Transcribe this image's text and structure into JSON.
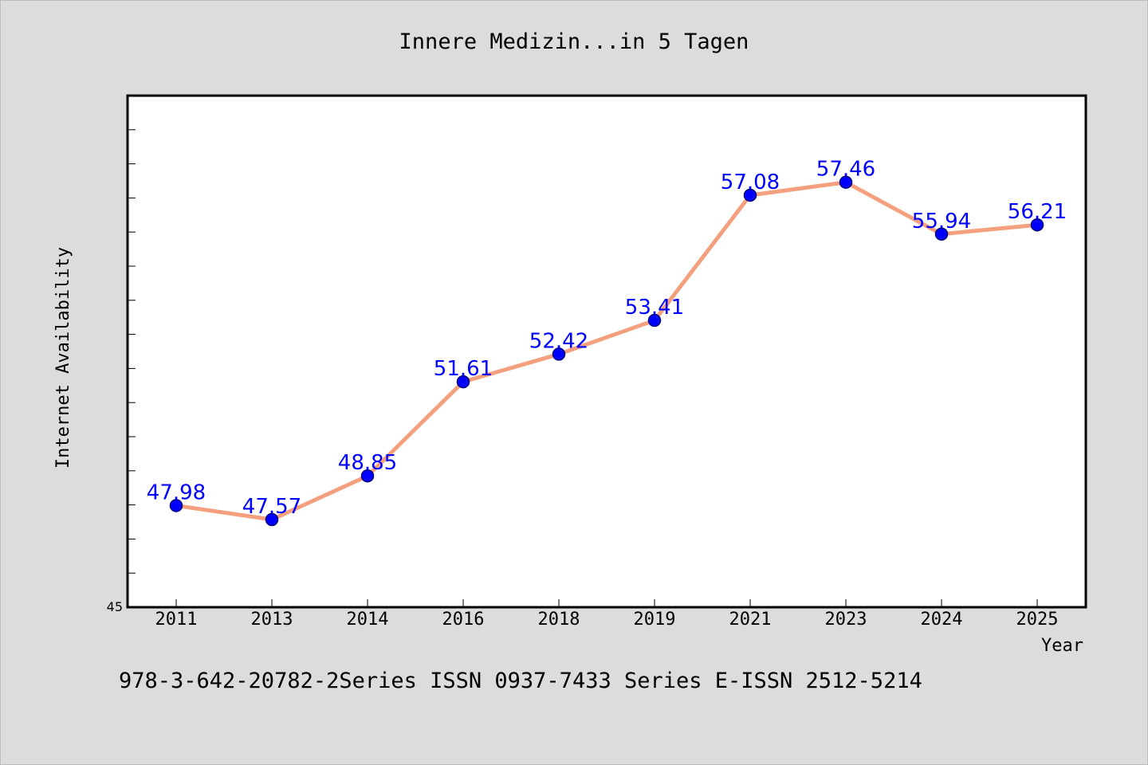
{
  "chart_data": {
    "type": "line",
    "title": "Innere Medizin...in 5 Tagen",
    "xlabel": "Year",
    "ylabel": "Internet Availability",
    "footer": "978-3-642-20782-2Series ISSN 0937-7433 Series E-ISSN 2512-5214",
    "categories": [
      "2011",
      "2013",
      "2014",
      "2016",
      "2018",
      "2019",
      "2021",
      "2023",
      "2024",
      "2025"
    ],
    "series": [
      {
        "values": [
          47.98,
          47.57,
          48.85,
          51.61,
          52.42,
          53.41,
          57.08,
          57.46,
          55.94,
          56.21
        ],
        "labels": [
          "47.98",
          "47.57",
          "48.85",
          "51.61",
          "52.42",
          "53.41",
          "57.08",
          "57.46",
          "55.94",
          "56.21"
        ]
      }
    ],
    "ylim": [
      45,
      60
    ],
    "y_tick_labels": [
      "45"
    ],
    "y_minor_step": 1,
    "grid": false,
    "legend": "none",
    "colors": {
      "line": "#f4a07e",
      "marker": "#0000ff",
      "marker_edge": "#00007a",
      "label": "#0000ff",
      "plot_bg": "#ffffff",
      "figure_bg": "#dcdcdc"
    }
  }
}
